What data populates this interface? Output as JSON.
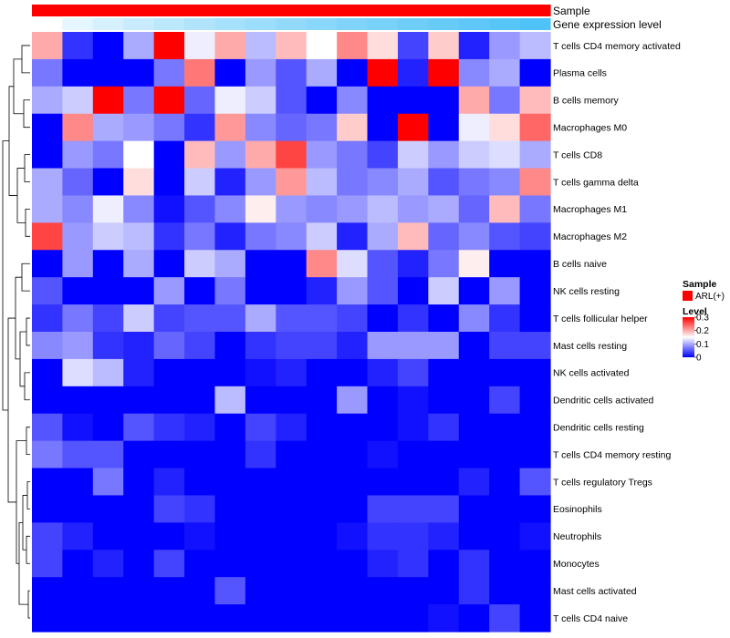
{
  "chart_data": {
    "type": "heatmap",
    "title": "",
    "annotations": [
      {
        "name": "Sample",
        "color_start": "#ff0000",
        "color_end": "#ff0000"
      },
      {
        "name": "Gene expression level",
        "color_start": "#ffffff",
        "color_end": "#4fc3f7"
      }
    ],
    "rows": [
      "T cells CD4 memory activated",
      "Plasma cells",
      "B cells memory",
      "Macrophages M0",
      "T cells CD8",
      "T cells gamma delta",
      "Macrophages M1",
      "Macrophages M2",
      "B cells naive",
      "NK cells resting",
      "T cells follicular helper",
      "Mast cells resting",
      "NK cells activated",
      "Dendritic cells activated",
      "Dendritic cells resting",
      "T cells CD4 memory resting",
      "T cells regulatory  Tregs",
      "Eosinophils",
      "Neutrophils",
      "Monocytes",
      "Mast cells activated",
      "T cells CD4 naive"
    ],
    "n_columns": 17,
    "values": [
      [
        0.2,
        0.03,
        0.0,
        0.1,
        0.3,
        0.14,
        0.2,
        0.11,
        0.19,
        0.15,
        0.22,
        0.17,
        0.04,
        0.18,
        0.02,
        0.09,
        0.11
      ],
      [
        0.07,
        0.0,
        0.0,
        0.0,
        0.07,
        0.23,
        0.0,
        0.09,
        0.05,
        0.1,
        0.0,
        0.3,
        0.02,
        0.3,
        0.08,
        0.1,
        0.0
      ],
      [
        0.1,
        0.12,
        0.3,
        0.07,
        0.3,
        0.06,
        0.14,
        0.12,
        0.05,
        0.0,
        0.08,
        0.0,
        0.0,
        0.0,
        0.2,
        0.07,
        0.19
      ],
      [
        0.0,
        0.22,
        0.1,
        0.09,
        0.07,
        0.03,
        0.21,
        0.08,
        0.06,
        0.07,
        0.18,
        0.0,
        0.3,
        0.0,
        0.14,
        0.17,
        0.24
      ],
      [
        0.0,
        0.09,
        0.07,
        0.15,
        0.0,
        0.19,
        0.09,
        0.2,
        0.26,
        0.09,
        0.07,
        0.04,
        0.12,
        0.09,
        0.12,
        0.13,
        0.1
      ],
      [
        0.1,
        0.06,
        0.0,
        0.17,
        0.0,
        0.12,
        0.02,
        0.09,
        0.21,
        0.11,
        0.07,
        0.08,
        0.1,
        0.05,
        0.07,
        0.08,
        0.22
      ],
      [
        0.1,
        0.08,
        0.14,
        0.08,
        0.01,
        0.05,
        0.08,
        0.16,
        0.09,
        0.08,
        0.09,
        0.11,
        0.09,
        0.1,
        0.06,
        0.19,
        0.07
      ],
      [
        0.26,
        0.09,
        0.12,
        0.11,
        0.03,
        0.07,
        0.02,
        0.07,
        0.08,
        0.12,
        0.02,
        0.1,
        0.19,
        0.06,
        0.08,
        0.05,
        0.04
      ],
      [
        0.0,
        0.09,
        0.0,
        0.1,
        0.0,
        0.12,
        0.1,
        0.0,
        0.0,
        0.22,
        0.13,
        0.05,
        0.02,
        0.07,
        0.16,
        0.0,
        0.0
      ],
      [
        0.05,
        0.0,
        0.0,
        0.0,
        0.09,
        0.0,
        0.07,
        0.0,
        0.0,
        0.02,
        0.09,
        0.05,
        0.0,
        0.12,
        0.0,
        0.09,
        0.0
      ],
      [
        0.03,
        0.07,
        0.04,
        0.12,
        0.04,
        0.05,
        0.05,
        0.1,
        0.05,
        0.05,
        0.04,
        0.0,
        0.03,
        0.0,
        0.08,
        0.03,
        0.0
      ],
      [
        0.08,
        0.09,
        0.03,
        0.02,
        0.06,
        0.04,
        0.0,
        0.03,
        0.04,
        0.04,
        0.02,
        0.09,
        0.09,
        0.09,
        0.0,
        0.04,
        0.04
      ],
      [
        0.0,
        0.13,
        0.11,
        0.02,
        0.0,
        0.0,
        0.0,
        0.01,
        0.02,
        0.0,
        0.0,
        0.02,
        0.04,
        0.0,
        0.0,
        0.0,
        0.0
      ],
      [
        0.0,
        0.0,
        0.0,
        0.0,
        0.0,
        0.0,
        0.11,
        0.0,
        0.0,
        0.0,
        0.09,
        0.0,
        0.01,
        0.0,
        0.0,
        0.04,
        0.0
      ],
      [
        0.05,
        0.01,
        0.0,
        0.05,
        0.03,
        0.02,
        0.0,
        0.04,
        0.02,
        0.0,
        0.0,
        0.0,
        0.01,
        0.03,
        0.0,
        0.0,
        0.0
      ],
      [
        0.07,
        0.05,
        0.05,
        0.0,
        0.0,
        0.0,
        0.0,
        0.03,
        0.0,
        0.0,
        0.0,
        0.01,
        0.0,
        0.0,
        0.0,
        0.0,
        0.0
      ],
      [
        0.0,
        0.0,
        0.07,
        0.0,
        0.02,
        0.0,
        0.0,
        0.0,
        0.0,
        0.0,
        0.0,
        0.0,
        0.0,
        0.0,
        0.02,
        0.0,
        0.05
      ],
      [
        0.0,
        0.0,
        0.0,
        0.0,
        0.04,
        0.03,
        0.0,
        0.0,
        0.0,
        0.0,
        0.0,
        0.04,
        0.04,
        0.04,
        0.0,
        0.0,
        0.0
      ],
      [
        0.04,
        0.02,
        0.0,
        0.0,
        0.0,
        0.01,
        0.0,
        0.0,
        0.0,
        0.0,
        0.01,
        0.03,
        0.03,
        0.02,
        0.0,
        0.0,
        0.01
      ],
      [
        0.04,
        0.0,
        0.02,
        0.0,
        0.04,
        0.0,
        0.0,
        0.0,
        0.0,
        0.0,
        0.0,
        0.02,
        0.03,
        0.0,
        0.03,
        0.0,
        0.0
      ],
      [
        0.0,
        0.0,
        0.0,
        0.0,
        0.0,
        0.0,
        0.05,
        0.0,
        0.0,
        0.0,
        0.0,
        0.0,
        0.0,
        0.0,
        0.03,
        0.0,
        0.0
      ],
      [
        0.0,
        0.0,
        0.0,
        0.0,
        0.0,
        0.0,
        0.0,
        0.0,
        0.0,
        0.0,
        0.0,
        0.0,
        0.0,
        0.01,
        0.0,
        0.04,
        0.0
      ]
    ],
    "color_scale": {
      "min": 0,
      "max": 0.3,
      "low": "#0000ff",
      "mid": "#ffffff",
      "high": "#ff0000",
      "mid_value": 0.15
    },
    "legend": {
      "sample_title": "Sample",
      "sample_item": "ARL(+)",
      "sample_color": "#ff0000",
      "level_title": "Level",
      "level_ticks": [
        "0.3",
        "0.2",
        "0.1",
        "0"
      ],
      "level_tick_values": [
        0.3,
        0.2,
        0.1,
        0
      ]
    },
    "dendrogram": "left"
  }
}
